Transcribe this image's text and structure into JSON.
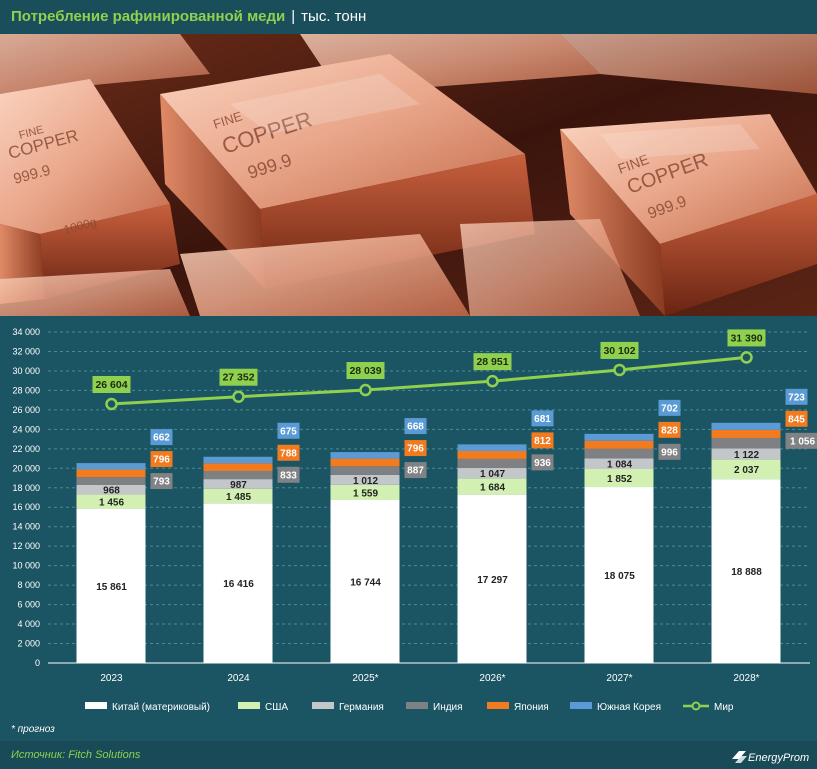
{
  "header": {
    "title_main": "Потребление рафинированной меди",
    "separator": "|",
    "title_unit": "тыс. тонн"
  },
  "photo": {
    "icon": "copper-ingots-photo",
    "stamp_text": [
      "FINE",
      "COPPER",
      "999.9",
      "1000g"
    ]
  },
  "footnote": "* прогноз",
  "footer": {
    "source": "Источник: Fitch Solutions",
    "logo_text": "EnergyProm"
  },
  "chart_data": {
    "type": "bar",
    "categories": [
      "2023",
      "2024",
      "2025*",
      "2026*",
      "2027*",
      "2028*"
    ],
    "yticks": [
      "0",
      "2 000",
      "4 000",
      "6 000",
      "8 000",
      "10 000",
      "12 000",
      "14 000",
      "16 000",
      "18 000",
      "20 000",
      "22 000",
      "24 000",
      "26 000",
      "28 000",
      "30 000",
      "32 000",
      "34 000"
    ],
    "ylim": [
      0,
      34000
    ],
    "grid": true,
    "legend_position": "bottom",
    "stacked_series": [
      {
        "name": "Китай (материковый)",
        "color": "#ffffff",
        "values": [
          15861,
          16416,
          16744,
          17297,
          18075,
          18888
        ],
        "labels": [
          "15 861",
          "16 416",
          "16 744",
          "17 297",
          "18 075",
          "18 888"
        ]
      },
      {
        "name": "США",
        "color": "#d2f0b2",
        "values": [
          1456,
          1485,
          1559,
          1684,
          1852,
          2037
        ],
        "labels": [
          "1 456",
          "1 485",
          "1 559",
          "1 684",
          "1 852",
          "2 037"
        ]
      },
      {
        "name": "Германия",
        "color": "#c4c7c9",
        "values": [
          968,
          987,
          1012,
          1047,
          1084,
          1122
        ],
        "labels": [
          "968",
          "987",
          "1 012",
          "1 047",
          "1 084",
          "1 122"
        ]
      },
      {
        "name": "Индия",
        "color": "#7e8083",
        "values": [
          793,
          833,
          887,
          936,
          996,
          1056
        ],
        "labels": [
          "793",
          "833",
          "887",
          "936",
          "996",
          "1 056"
        ]
      },
      {
        "name": "Япония",
        "color": "#f27a1f",
        "values": [
          796,
          788,
          796,
          812,
          828,
          845
        ],
        "labels": [
          "796",
          "788",
          "796",
          "812",
          "828",
          "845"
        ]
      },
      {
        "name": "Южная Корея",
        "color": "#5b9bd5",
        "values": [
          662,
          675,
          668,
          681,
          702,
          723
        ],
        "labels": [
          "662",
          "675",
          "668",
          "681",
          "702",
          "723"
        ]
      }
    ],
    "line_series": {
      "name": "Мир",
      "color": "#8fd14f",
      "values": [
        26604,
        27352,
        28039,
        28951,
        30102,
        31390
      ],
      "labels": [
        "26 604",
        "27 352",
        "28 039",
        "28 951",
        "30 102",
        "31 390"
      ]
    }
  }
}
